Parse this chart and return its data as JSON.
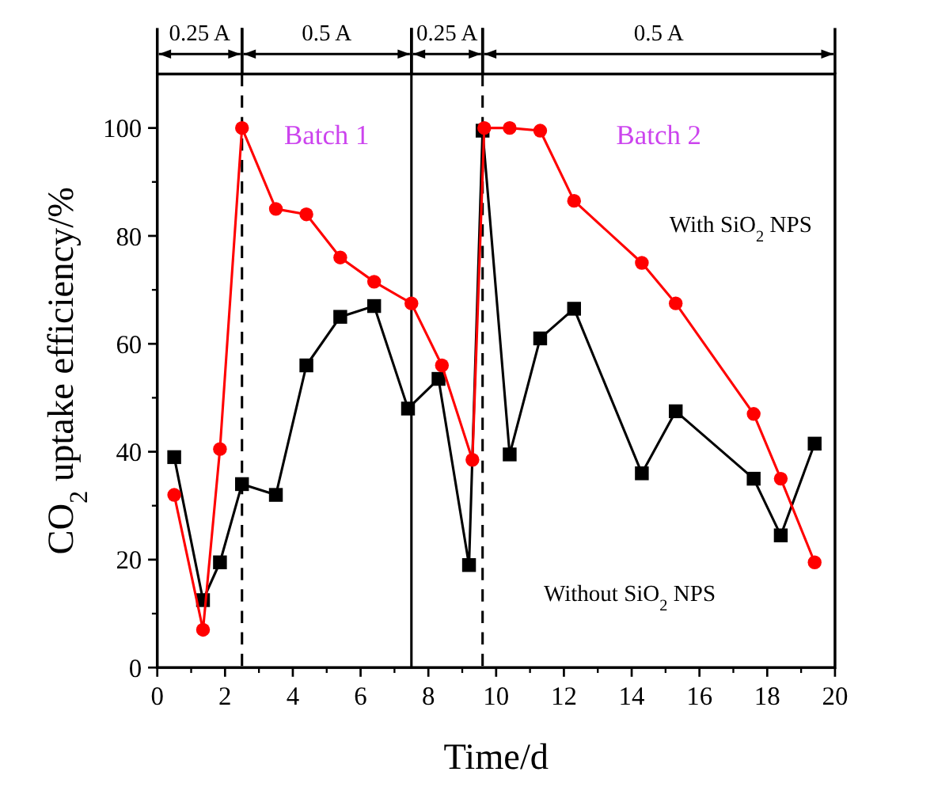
{
  "chart_data": {
    "type": "line",
    "xlabel": "Time/d",
    "ylabel": "CO$_{2}$ uptake efficiency/%",
    "xlim": [
      0,
      20
    ],
    "ylim": [
      0,
      110
    ],
    "xticks": [
      0,
      2,
      4,
      6,
      8,
      10,
      12,
      14,
      16,
      18,
      20
    ],
    "yticks": [
      0,
      20,
      40,
      60,
      80,
      100
    ],
    "line_style": "solid",
    "series": [
      {
        "name": "With SiO$_{2}$ NPS",
        "color": "#ff0000",
        "marker": "circle",
        "x": [
          0.5,
          1.35,
          1.85,
          2.5,
          3.5,
          4.4,
          5.4,
          6.4,
          7.5,
          8.4,
          9.3,
          9.65,
          10.4,
          11.3,
          12.3,
          14.3,
          15.3,
          17.6,
          18.4,
          19.4
        ],
        "values": [
          32,
          7,
          40.5,
          100,
          85,
          84,
          76,
          71.5,
          67.5,
          56,
          38.5,
          100,
          100,
          99.5,
          86.5,
          75,
          67.5,
          47,
          35,
          19.5
        ]
      },
      {
        "name": "Without SiO$_{2}$ NPS",
        "color": "#000000",
        "marker": "square",
        "x": [
          0.5,
          1.35,
          1.85,
          2.5,
          3.5,
          4.4,
          5.4,
          6.4,
          7.4,
          8.3,
          9.2,
          9.6,
          10.4,
          11.3,
          12.3,
          14.3,
          15.3,
          17.6,
          18.4,
          19.4
        ],
        "values": [
          39,
          12.5,
          19.5,
          34,
          32,
          56,
          65,
          67,
          48,
          53.5,
          19,
          99.5,
          39.5,
          61,
          66.5,
          36,
          47.5,
          35,
          24.5,
          41.5
        ]
      }
    ],
    "ref_lines": [
      {
        "axis": "x",
        "value": 2.5,
        "line_style": "dashed"
      },
      {
        "axis": "x",
        "value": 7.5,
        "line_style": "solid"
      },
      {
        "axis": "x",
        "value": 9.6,
        "line_style": "dashed"
      }
    ],
    "annotations": [
      "0.25 A",
      "0.5 A",
      "0.25 A",
      "0.5 A",
      "Batch 1",
      "Batch 2"
    ]
  }
}
